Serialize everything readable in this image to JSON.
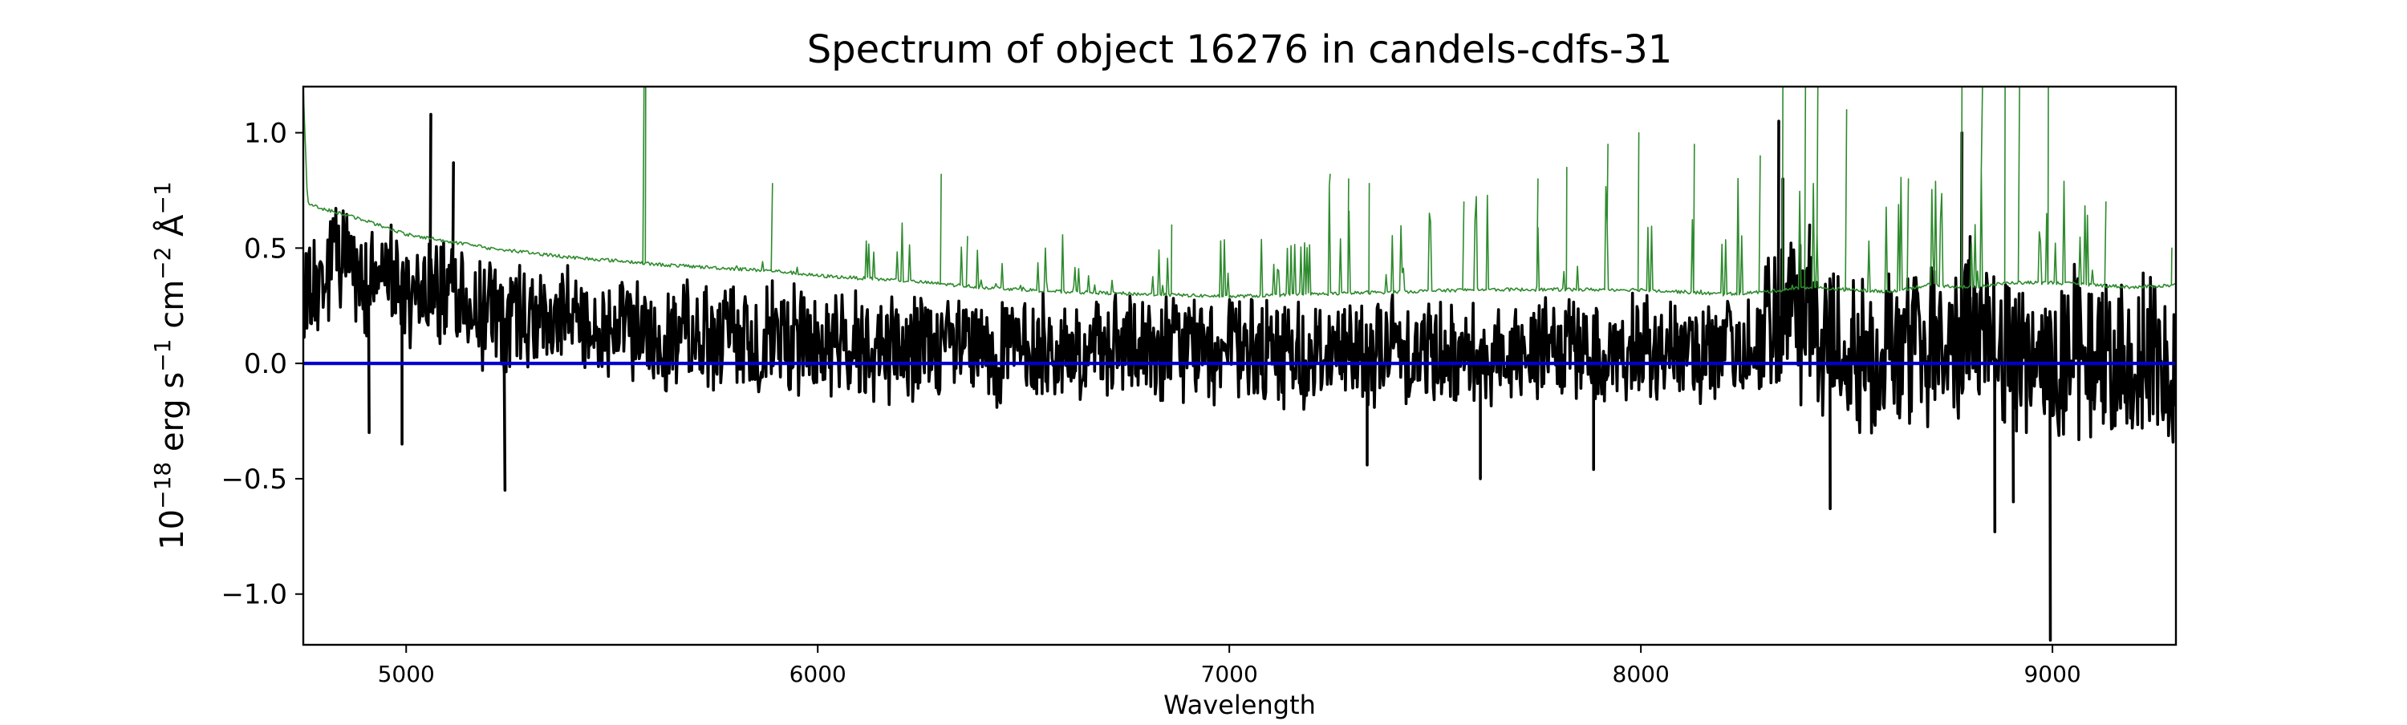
{
  "chart_data": {
    "type": "line",
    "title": "Spectrum of object 16276 in candels-cdfs-31",
    "xlabel": "Wavelength",
    "ylabel": "10−18 erg s−1 cm−2 Å−1",
    "ylabel_parts": [
      {
        "text": "10",
        "sup": false
      },
      {
        "text": "−18",
        "sup": true
      },
      {
        "text": " erg s",
        "sup": false
      },
      {
        "text": "−1",
        "sup": true
      },
      {
        "text": " cm",
        "sup": false
      },
      {
        "text": "−2",
        "sup": true
      },
      {
        "text": " Å",
        "sup": false
      },
      {
        "text": "−1",
        "sup": true
      }
    ],
    "xlim": [
      4750,
      9300
    ],
    "ylim": [
      -1.22,
      1.2
    ],
    "xticks": [
      5000,
      6000,
      7000,
      8000,
      9000
    ],
    "xtick_labels": [
      "5000",
      "6000",
      "7000",
      "8000",
      "9000"
    ],
    "yticks": [
      -1.0,
      -0.5,
      0.0,
      0.5,
      1.0
    ],
    "ytick_labels": [
      "−1.0",
      "−0.5",
      "0.0",
      "0.5",
      "1.0"
    ],
    "grid": false,
    "legend": "none",
    "series": [
      {
        "color": "#000000",
        "role": "flux",
        "x": [
          4750,
          4800,
          4850,
          4900,
          4950,
          5000,
          5050,
          5100,
          5150,
          5200,
          5250,
          5300,
          5350,
          5400,
          5450,
          5500,
          5550,
          5600,
          5650,
          5700,
          5750,
          5800,
          5850,
          5900,
          5950,
          6000,
          6100,
          6200,
          6300,
          6400,
          6500,
          6600,
          6700,
          6800,
          6900,
          7000,
          7100,
          7200,
          7300,
          7400,
          7500,
          7600,
          7700,
          7800,
          7900,
          8000,
          8100,
          8200,
          8300,
          8350,
          8400,
          8450,
          8500,
          8600,
          8700,
          8800,
          8850,
          8900,
          8950,
          9000,
          9050,
          9100,
          9150,
          9200,
          9250,
          9300
        ],
        "y": [
          0.25,
          0.35,
          0.5,
          0.3,
          0.45,
          0.28,
          0.35,
          0.3,
          0.25,
          0.22,
          0.18,
          0.2,
          0.15,
          0.2,
          0.12,
          0.18,
          0.15,
          0.1,
          0.14,
          0.12,
          0.1,
          0.12,
          0.09,
          0.12,
          0.1,
          0.08,
          0.1,
          0.06,
          0.08,
          0.05,
          0.07,
          0.05,
          0.06,
          0.05,
          0.07,
          0.06,
          0.05,
          0.04,
          0.05,
          0.06,
          0.05,
          0.04,
          0.06,
          0.05,
          0.04,
          0.05,
          0.06,
          0.05,
          0.1,
          0.2,
          0.15,
          0.1,
          0.08,
          0.06,
          0.08,
          0.12,
          0.1,
          0.08,
          0.05,
          0.02,
          0.05,
          0.03,
          0.02,
          0.01,
          0.02,
          0.0
        ],
        "features": [
          {
            "x": 5060,
            "y": 1.08
          },
          {
            "x": 5115,
            "y": 0.87
          },
          {
            "x": 5240,
            "y": -0.55
          },
          {
            "x": 4910,
            "y": -0.3
          },
          {
            "x": 4990,
            "y": -0.35
          },
          {
            "x": 7335,
            "y": -0.44
          },
          {
            "x": 7610,
            "y": -0.5
          },
          {
            "x": 7885,
            "y": -0.46
          },
          {
            "x": 8335,
            "y": 1.05
          },
          {
            "x": 8345,
            "y": 0.8
          },
          {
            "x": 8460,
            "y": -0.63
          },
          {
            "x": 8860,
            "y": -0.73
          },
          {
            "x": 8780,
            "y": 1.0
          },
          {
            "x": 8905,
            "y": -0.6
          },
          {
            "x": 8995,
            "y": -1.2
          },
          {
            "x": 8410,
            "y": 0.6
          },
          {
            "x": 8800,
            "y": 0.55
          }
        ]
      },
      {
        "color": "#2e8b2e",
        "role": "error",
        "x": [
          4750,
          4760,
          4780,
          4800,
          4900,
          5000,
          5200,
          5400,
          5550,
          5600,
          5800,
          5900,
          6000,
          6200,
          6400,
          6600,
          6800,
          7000,
          7200,
          7400,
          7600,
          7800,
          8000,
          8200,
          8300,
          8400,
          8500,
          8600,
          8700,
          8800,
          8900,
          9000,
          9100,
          9200,
          9300
        ],
        "y": [
          1.2,
          0.7,
          0.68,
          0.67,
          0.62,
          0.56,
          0.5,
          0.46,
          0.44,
          0.43,
          0.41,
          0.4,
          0.38,
          0.36,
          0.33,
          0.31,
          0.3,
          0.29,
          0.3,
          0.31,
          0.32,
          0.32,
          0.32,
          0.3,
          0.31,
          0.33,
          0.32,
          0.31,
          0.34,
          0.33,
          0.35,
          0.35,
          0.34,
          0.33,
          0.34
        ],
        "features": [
          {
            "x": 5578,
            "y": 1.2
          },
          {
            "x": 5582,
            "y": 1.2
          },
          {
            "x": 5890,
            "y": 0.78
          },
          {
            "x": 6300,
            "y": 0.82
          },
          {
            "x": 6364,
            "y": 0.55
          },
          {
            "x": 6860,
            "y": 0.6
          },
          {
            "x": 7245,
            "y": 0.82
          },
          {
            "x": 7290,
            "y": 0.8
          },
          {
            "x": 7340,
            "y": 0.78
          },
          {
            "x": 7570,
            "y": 0.7
          },
          {
            "x": 7750,
            "y": 0.8
          },
          {
            "x": 7820,
            "y": 0.85
          },
          {
            "x": 7920,
            "y": 0.95
          },
          {
            "x": 7995,
            "y": 1.0
          },
          {
            "x": 8130,
            "y": 0.95
          },
          {
            "x": 8290,
            "y": 0.9
          },
          {
            "x": 8345,
            "y": 1.2
          },
          {
            "x": 8400,
            "y": 1.2
          },
          {
            "x": 8430,
            "y": 1.2
          },
          {
            "x": 8500,
            "y": 1.1
          },
          {
            "x": 8650,
            "y": 0.8
          },
          {
            "x": 8780,
            "y": 1.2
          },
          {
            "x": 8830,
            "y": 1.2
          },
          {
            "x": 8885,
            "y": 1.2
          },
          {
            "x": 8920,
            "y": 1.2
          },
          {
            "x": 8990,
            "y": 1.2
          },
          {
            "x": 9130,
            "y": 0.7
          },
          {
            "x": 9290,
            "y": 0.5
          }
        ]
      },
      {
        "color": "#0000cc",
        "role": "zero-line",
        "x": [
          4750,
          9300
        ],
        "y": [
          0.0,
          0.0
        ]
      }
    ]
  }
}
